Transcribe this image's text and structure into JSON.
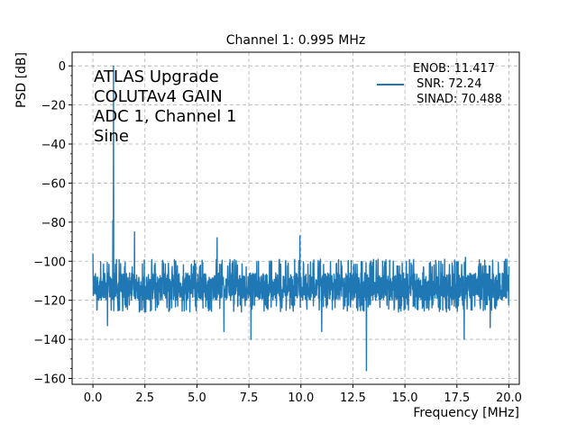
{
  "chart_data": {
    "type": "line",
    "title": "Channel 1: 0.995 MHz",
    "xlabel": "Frequency [MHz]",
    "ylabel": "PSD [dB]",
    "xlim": [
      -1.0,
      20.5
    ],
    "ylim": [
      -163,
      7
    ],
    "xticks": [
      0.0,
      2.5,
      5.0,
      7.5,
      10.0,
      12.5,
      15.0,
      17.5,
      20.0
    ],
    "xtick_labels": [
      "0.0",
      "2.5",
      "5.0",
      "7.5",
      "10.0",
      "12.5",
      "15.0",
      "17.5",
      "20.0"
    ],
    "yticks": [
      0,
      -20,
      -40,
      -60,
      -80,
      -100,
      -120,
      -140,
      -160
    ],
    "ytick_labels": [
      "0",
      "−20",
      "−40",
      "−60",
      "−80",
      "−100",
      "−120",
      "−140",
      "−160"
    ],
    "grid": true,
    "annotation": [
      "ATLAS Upgrade",
      "COLUTAv4 GAIN",
      "ADC 1, Channel 1",
      "Sine"
    ],
    "legend": {
      "placement": "top-right",
      "lines": [
        "ENOB: 11.417",
        " SNR: 72.24",
        " SINAD: 70.488"
      ]
    },
    "series": [
      {
        "color": "#1f77b4",
        "noise_floor_db": -113,
        "noise_range_db": [
          -126,
          -99
        ],
        "x_range": [
          0.0,
          20.0
        ],
        "peaks": [
          {
            "x": 0.0,
            "y": -96
          },
          {
            "x": 0.995,
            "y": 0
          },
          {
            "x": 0.96,
            "y": -79
          },
          {
            "x": 2.0,
            "y": -85
          },
          {
            "x": 2.99,
            "y": -101
          },
          {
            "x": 3.98,
            "y": -100
          },
          {
            "x": 5.97,
            "y": -88
          },
          {
            "x": 7.96,
            "y": -100
          },
          {
            "x": 9.95,
            "y": -87
          },
          {
            "x": 10.94,
            "y": -99
          },
          {
            "x": 11.93,
            "y": -100
          },
          {
            "x": 13.93,
            "y": -100
          },
          {
            "x": 16.91,
            "y": -99
          },
          {
            "x": 17.91,
            "y": -98
          },
          {
            "x": 19.9,
            "y": -99
          }
        ],
        "dips": [
          {
            "x": 13.15,
            "y": -156
          },
          {
            "x": 17.85,
            "y": -140
          },
          {
            "x": 7.6,
            "y": -140
          },
          {
            "x": 0.7,
            "y": -133
          },
          {
            "x": 6.3,
            "y": -136
          },
          {
            "x": 11.0,
            "y": -136
          },
          {
            "x": 19.1,
            "y": -134
          }
        ]
      }
    ]
  }
}
